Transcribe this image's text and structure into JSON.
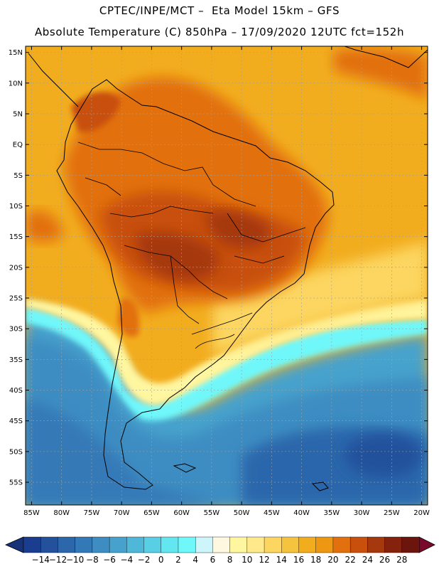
{
  "title_line1": "CPTEC/INPE/MCT –  Eta Model 15km – GFS",
  "title_line2": "Absolute Temperature (C) 850hPa – 17/09/2020 12UTC fct=152h",
  "lat_labels": [
    "15N",
    "10N",
    "5N",
    "EQ",
    "5S",
    "10S",
    "15S",
    "20S",
    "25S",
    "30S",
    "35S",
    "40S",
    "45S",
    "50S",
    "55S"
  ],
  "lon_labels": [
    "85W",
    "80W",
    "75W",
    "70W",
    "65W",
    "60W",
    "55W",
    "50W",
    "45W",
    "40W",
    "35W",
    "30W",
    "25W",
    "20W"
  ],
  "colorbar": {
    "labels": [
      "-14",
      "-12",
      "-10",
      "-8",
      "-6",
      "-4",
      "-2",
      "0",
      "2",
      "4",
      "6",
      "8",
      "10",
      "12",
      "14",
      "16",
      "18",
      "20",
      "22",
      "24",
      "26",
      "28"
    ],
    "colors": [
      "#1a3d8f",
      "#24519c",
      "#2c66ab",
      "#3479b7",
      "#3d8dc2",
      "#46a2cc",
      "#4fb8d8",
      "#58cfe4",
      "#62e6f0",
      "#6ff7fa",
      "#cdf5fa",
      "#fff8e0",
      "#fff6a0",
      "#ffe98a",
      "#fcd660",
      "#f6c33e",
      "#f2ad1f",
      "#ed9712",
      "#e2700e",
      "#c8500c",
      "#a5380c",
      "#85220d",
      "#6b150d"
    ],
    "under_color": "#16337a",
    "over_color": "#7a0a2b"
  }
}
